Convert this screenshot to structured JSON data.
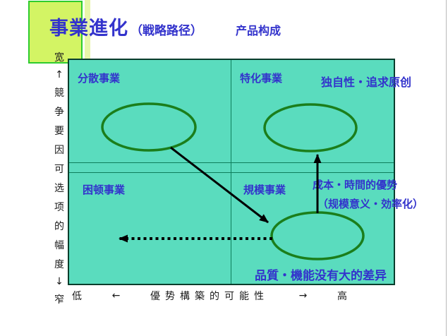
{
  "title": {
    "main": "事業進化",
    "sub": "（戦略路径）",
    "right": "产品构成"
  },
  "matrix": {
    "quadrants": {
      "top_left": "分散事業",
      "top_right": "特化事業",
      "bottom_left": "困顿事業",
      "bottom_right": "規模事業"
    }
  },
  "annotations": {
    "uniqueness": "独自性・追求原创",
    "cost_time": "成本・時間的優势",
    "scale_note": "（规模意义・効率化）",
    "quality": "品質・機能没有大的差异"
  },
  "axis_y": {
    "chars": [
      "宽",
      "↑",
      "競",
      "争",
      "要",
      "因",
      "可",
      "选",
      "项",
      "的",
      "幅",
      "度",
      "↓",
      "窄"
    ]
  },
  "axis_x": {
    "low": "低",
    "left_arrow": "←",
    "label": "優势構築的可能性",
    "right_arrow": "→",
    "high": "高"
  },
  "colors": {
    "teal_bg": "#5ADCBE",
    "text_blue": "#3333CC",
    "ellipse_green": "#1B7E1B",
    "hl_fill": "#D3F464",
    "hl_border": "#2ECC2E",
    "pale_bar": "#E8F6A9",
    "divider": "#0E7E5C",
    "matrix_border": "#0A3D2C",
    "arrow_black": "#000000",
    "axis_text": "#1A1A1A",
    "slide_edge": "#B9B9B9"
  }
}
